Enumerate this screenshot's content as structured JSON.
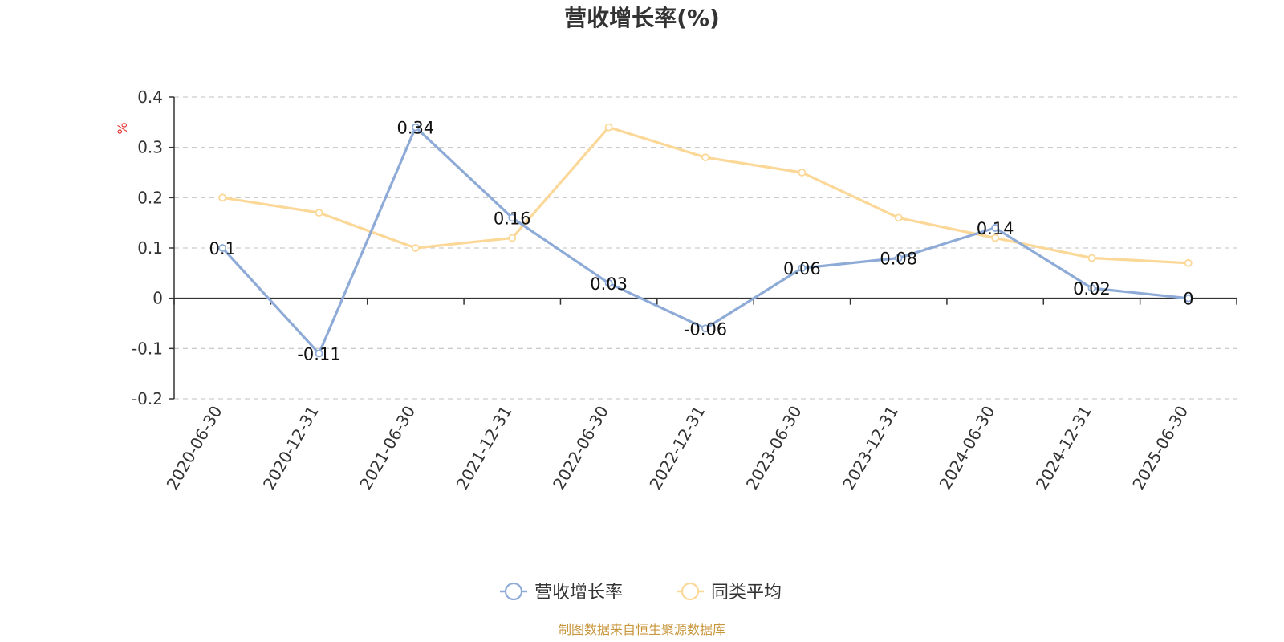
{
  "chart_data": {
    "type": "line",
    "title": "营收增长率(%)",
    "ylabel": "%",
    "categories": [
      "2020-06-30",
      "2020-12-31",
      "2021-06-30",
      "2021-12-31",
      "2022-06-30",
      "2022-12-31",
      "2023-06-30",
      "2023-12-31",
      "2024-06-30",
      "2024-12-31",
      "2025-06-30"
    ],
    "ylim": [
      -0.2,
      0.4
    ],
    "yticks": [
      "0.4",
      "0.3",
      "0.2",
      "0.1",
      "0",
      "-0.1",
      "-0.2"
    ],
    "grid": true,
    "legend_position": "bottom",
    "series": [
      {
        "name": "营收增长率",
        "color": "#8eabd8",
        "values": [
          0.1,
          -0.11,
          0.34,
          0.16,
          0.03,
          -0.06,
          0.06,
          0.08,
          0.14,
          0.02,
          0
        ],
        "labels": [
          "0.1",
          "-0.11",
          "0.34",
          "0.16",
          "0.03",
          "-0.06",
          "0.06",
          "0.08",
          "0.14",
          "0.02",
          "0"
        ]
      },
      {
        "name": "同类平均",
        "color": "#fcd898",
        "values": [
          0.2,
          0.17,
          0.1,
          0.12,
          0.34,
          0.28,
          0.25,
          0.16,
          0.12,
          0.08,
          0.07
        ]
      }
    ]
  },
  "source_text": "制图数据来自恒生聚源数据库",
  "colors": {
    "unit_label": "#e03030",
    "source_text": "#c8963c",
    "axis": "#333333",
    "grid": "#cccccc"
  }
}
